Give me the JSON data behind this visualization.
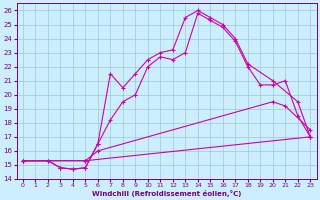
{
  "xlabel": "Windchill (Refroidissement éolien,°C)",
  "xlim": [
    -0.5,
    23.5
  ],
  "ylim": [
    14,
    26.5
  ],
  "yticks": [
    14,
    15,
    16,
    17,
    18,
    19,
    20,
    21,
    22,
    23,
    24,
    25,
    26
  ],
  "xticks": [
    0,
    1,
    2,
    3,
    4,
    5,
    6,
    7,
    8,
    9,
    10,
    11,
    12,
    13,
    14,
    15,
    16,
    17,
    18,
    19,
    20,
    21,
    22,
    23
  ],
  "background_color": "#cceeff",
  "grid_color": "#99cccc",
  "line_color": "#cc00aa",
  "line1_x": [
    0,
    2,
    3,
    4,
    5,
    6,
    7,
    8,
    9,
    10,
    11,
    12,
    13,
    14,
    15,
    16,
    17,
    18,
    19,
    20,
    21,
    22,
    23
  ],
  "line1_y": [
    15.3,
    15.3,
    14.8,
    14.7,
    14.8,
    16.5,
    18.2,
    19.5,
    20.0,
    22.0,
    22.7,
    22.5,
    23.0,
    25.8,
    25.3,
    24.8,
    23.8,
    22.0,
    20.7,
    20.7,
    21.0,
    18.5,
    17.0
  ],
  "line2_x": [
    0,
    2,
    3,
    4,
    5,
    6,
    7,
    8,
    9,
    10,
    11,
    12,
    13,
    14,
    15,
    16,
    17,
    18,
    20,
    22,
    23
  ],
  "line2_y": [
    15.3,
    15.3,
    14.8,
    14.7,
    14.8,
    16.5,
    21.5,
    20.5,
    21.5,
    22.5,
    23.0,
    23.2,
    25.5,
    26.0,
    25.5,
    25.0,
    24.0,
    22.2,
    21.0,
    19.5,
    17.0
  ],
  "line3_x": [
    0,
    5,
    6,
    20,
    21,
    23
  ],
  "line3_y": [
    15.3,
    15.3,
    16.0,
    19.5,
    19.2,
    17.5
  ],
  "line4_x": [
    0,
    5,
    23
  ],
  "line4_y": [
    15.3,
    15.3,
    17.0
  ]
}
